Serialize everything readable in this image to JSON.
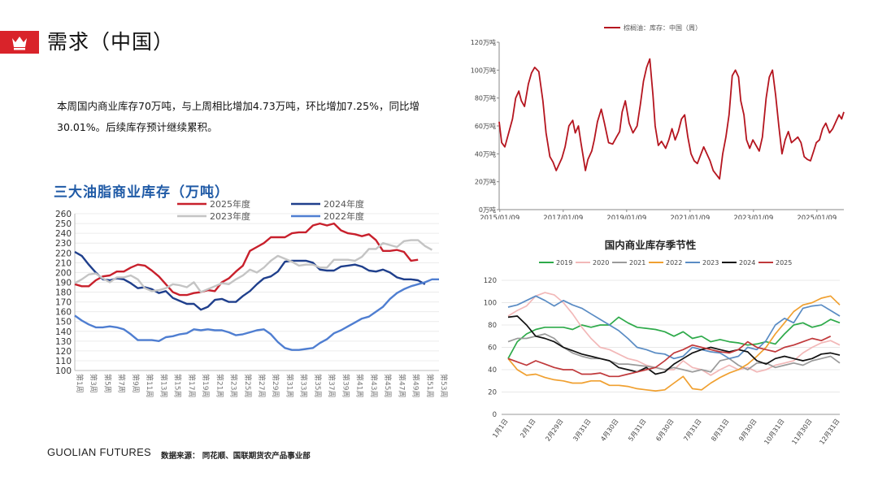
{
  "header": {
    "title": "需求（中国）",
    "icon": "crown-icon",
    "accent": "#d9232a"
  },
  "summary": {
    "line1": "本周国内商业库存70万吨，与上周相比增加4.73万吨，环比增加7.25%，同比增",
    "line2": "30.01%。后续库存预计继续累积。"
  },
  "footer": {
    "logo": "GUOLIAN FUTURES",
    "source": "数据来源： 同花顺、国联期货农产品事业部"
  },
  "chart_data": [
    {
      "type": "line",
      "title": "三大油脂商业库存（万吨）",
      "ylim": [
        100,
        260
      ],
      "y_ticks": [
        "100",
        "110",
        "120",
        "130",
        "140",
        "150",
        "160",
        "170",
        "180",
        "190",
        "200",
        "210",
        "220",
        "230",
        "240",
        "250",
        "260"
      ],
      "x_ticks": [
        "第1周",
        "第3周",
        "第5周",
        "第7周",
        "第9周",
        "第11周",
        "第13周",
        "第15周",
        "第17周",
        "第19周",
        "第21周",
        "第23周",
        "第25周",
        "第27周",
        "第29周",
        "第31周",
        "第33周",
        "第35周",
        "第37周",
        "第39周",
        "第41周",
        "第43周",
        "第45周",
        "第47周",
        "第49周",
        "第51周",
        "第53周"
      ],
      "series": [
        {
          "name": "2025年度",
          "color": "#c8202c",
          "values": [
            188,
            186,
            186,
            192,
            196,
            197,
            201,
            201,
            205,
            208,
            207,
            202,
            196,
            188,
            180,
            177,
            177,
            179,
            180,
            182,
            181,
            190,
            194,
            201,
            207,
            222,
            226,
            230,
            236,
            236,
            236,
            240,
            241,
            241,
            248,
            250,
            248,
            250,
            243,
            240,
            239,
            237,
            239,
            233,
            222,
            222,
            223,
            221,
            212,
            213
          ]
        },
        {
          "name": "2024年度",
          "color": "#1f3f8c",
          "values": [
            221,
            217,
            208,
            200,
            193,
            192,
            194,
            193,
            189,
            184,
            185,
            183,
            179,
            181,
            174,
            171,
            168,
            168,
            162,
            165,
            172,
            173,
            170,
            170,
            176,
            181,
            188,
            194,
            196,
            201,
            211,
            212,
            212,
            212,
            210,
            203,
            202,
            202,
            206,
            207,
            208,
            206,
            202,
            201,
            203,
            200,
            195,
            193,
            193,
            192,
            188
          ]
        },
        {
          "name": "2023年度",
          "color": "#c4c4c4",
          "values": [
            189,
            193,
            198,
            199,
            194,
            190,
            195,
            195,
            197,
            193,
            184,
            181,
            182,
            184,
            188,
            187,
            185,
            190,
            180,
            183,
            186,
            189,
            188,
            193,
            197,
            203,
            200,
            205,
            212,
            217,
            214,
            211,
            207,
            208,
            208,
            205,
            205,
            213,
            213,
            213,
            212,
            216,
            224,
            224,
            230,
            228,
            226,
            232,
            233,
            233,
            227,
            223
          ]
        },
        {
          "name": "2022年度",
          "color": "#4f7ed1",
          "values": [
            156,
            151,
            147,
            144,
            144,
            145,
            144,
            142,
            137,
            131,
            131,
            131,
            130,
            134,
            135,
            137,
            138,
            142,
            141,
            142,
            141,
            141,
            139,
            136,
            137,
            139,
            141,
            142,
            137,
            129,
            123,
            121,
            121,
            122,
            123,
            128,
            132,
            138,
            141,
            145,
            149,
            153,
            155,
            160,
            165,
            173,
            179,
            183,
            186,
            188,
            190,
            193,
            193
          ]
        }
      ]
    },
    {
      "type": "line",
      "title": "棕榈油：库存：中国（周）",
      "legend": "棕榈油：库存：中国（周）",
      "ylim": [
        0,
        120
      ],
      "y_ticks": [
        "0万吨",
        "20万吨",
        "40万吨",
        "60万吨",
        "80万吨",
        "100万吨",
        "120万吨"
      ],
      "x_ticks": [
        "2015/01/09",
        "2017/01/09",
        "2019/01/09",
        "2021/01/09",
        "2023/01/09",
        "2025/01/09"
      ],
      "x_range": [
        2015.0,
        2025.87
      ],
      "series": [
        {
          "name": "棕榈油：库存：中国（周）",
          "color": "#b5151f",
          "x": [
            2015.0,
            2015.08,
            2015.18,
            2015.3,
            2015.42,
            2015.52,
            2015.62,
            2015.7,
            2015.8,
            2015.92,
            2016.02,
            2016.12,
            2016.25,
            2016.38,
            2016.48,
            2016.6,
            2016.7,
            2016.8,
            2016.88,
            2016.98,
            2017.08,
            2017.2,
            2017.32,
            2017.4,
            2017.5,
            2017.58,
            2017.65,
            2017.72,
            2017.8,
            2017.92,
            2018.0,
            2018.1,
            2018.22,
            2018.32,
            2018.45,
            2018.58,
            2018.7,
            2018.8,
            2018.88,
            2018.98,
            2019.1,
            2019.22,
            2019.35,
            2019.45,
            2019.55,
            2019.65,
            2019.75,
            2019.85,
            2019.92,
            2020.02,
            2020.12,
            2020.25,
            2020.35,
            2020.45,
            2020.55,
            2020.65,
            2020.75,
            2020.85,
            2020.95,
            2021.05,
            2021.15,
            2021.25,
            2021.35,
            2021.45,
            2021.55,
            2021.65,
            2021.75,
            2021.85,
            2021.95,
            2022.05,
            2022.15,
            2022.25,
            2022.35,
            2022.45,
            2022.55,
            2022.62,
            2022.72,
            2022.8,
            2022.9,
            2023.0,
            2023.1,
            2023.2,
            2023.3,
            2023.42,
            2023.52,
            2023.62,
            2023.72,
            2023.82,
            2023.92,
            2024.02,
            2024.12,
            2024.22,
            2024.32,
            2024.42,
            2024.52,
            2024.62,
            2024.72,
            2024.82,
            2024.92,
            2025.0,
            2025.1,
            2025.2,
            2025.3,
            2025.42,
            2025.52,
            2025.62,
            2025.72,
            2025.8,
            2025.87
          ],
          "values": [
            63,
            48,
            45,
            55,
            65,
            80,
            85,
            78,
            74,
            90,
            98,
            102,
            99,
            78,
            55,
            38,
            34,
            28,
            32,
            37,
            45,
            60,
            64,
            55,
            60,
            48,
            38,
            28,
            36,
            42,
            50,
            63,
            72,
            62,
            48,
            47,
            52,
            56,
            70,
            78,
            62,
            55,
            60,
            75,
            92,
            102,
            108,
            82,
            60,
            46,
            49,
            44,
            50,
            58,
            50,
            56,
            65,
            68,
            52,
            40,
            35,
            33,
            39,
            45,
            40,
            35,
            28,
            25,
            22,
            40,
            52,
            68,
            96,
            100,
            95,
            78,
            68,
            50,
            44,
            50,
            46,
            42,
            52,
            80,
            95,
            100,
            82,
            60,
            40,
            50,
            56,
            48,
            50,
            52,
            48,
            38,
            36,
            35,
            42,
            48,
            50,
            58,
            62,
            55,
            58,
            63,
            68,
            65,
            70
          ]
        }
      ]
    },
    {
      "type": "line",
      "title": "国内商业库存季节性",
      "ylim": [
        0,
        120
      ],
      "y_ticks": [
        "0",
        "20",
        "40",
        "60",
        "80",
        "100",
        "120"
      ],
      "x_ticks": [
        "1月1日",
        "2月1日",
        "2月29日",
        "3月31日",
        "4月30日",
        "5月31日",
        "6月30日",
        "7月31日",
        "8月31日",
        "9月30日",
        "10月31日",
        "11月30日",
        "12月31日"
      ],
      "series": [
        {
          "name": "2019",
          "color": "#2eaa4a",
          "values": [
            50,
            65,
            72,
            76,
            78,
            78,
            78,
            76,
            80,
            78,
            80,
            80,
            87,
            82,
            78,
            77,
            76,
            74,
            70,
            74,
            68,
            70,
            65,
            67,
            65,
            64,
            62,
            63,
            65,
            63,
            72,
            80,
            82,
            78,
            80,
            85,
            82
          ]
        },
        {
          "name": "2020",
          "color": "#f2b8b8",
          "values": [
            88,
            93,
            97,
            106,
            109,
            107,
            100,
            90,
            78,
            68,
            60,
            58,
            54,
            50,
            48,
            44,
            42,
            40,
            40,
            48,
            42,
            40,
            35,
            40,
            44,
            40,
            42,
            38,
            40,
            44,
            46,
            48,
            55,
            60,
            64,
            66,
            62
          ]
        },
        {
          "name": "2021",
          "color": "#9a9a9a",
          "values": [
            65,
            68,
            68,
            70,
            72,
            68,
            60,
            55,
            52,
            50,
            50,
            48,
            45,
            45,
            44,
            43,
            42,
            40,
            42,
            40,
            38,
            40,
            38,
            48,
            50,
            44,
            40,
            46,
            46,
            42,
            44,
            46,
            44,
            48,
            50,
            52,
            46
          ]
        },
        {
          "name": "2022",
          "color": "#f0a030",
          "values": [
            50,
            40,
            35,
            36,
            33,
            31,
            30,
            28,
            28,
            30,
            30,
            26,
            26,
            25,
            23,
            22,
            21,
            22,
            28,
            34,
            23,
            22,
            28,
            33,
            37,
            40,
            45,
            52,
            60,
            72,
            82,
            92,
            98,
            100,
            104,
            106,
            98
          ]
        },
        {
          "name": "2023",
          "color": "#5a8cc4",
          "values": [
            96,
            98,
            102,
            106,
            102,
            97,
            102,
            98,
            95,
            90,
            85,
            80,
            75,
            68,
            60,
            58,
            55,
            54,
            50,
            52,
            60,
            58,
            56,
            55,
            50,
            52,
            60,
            58,
            66,
            80,
            86,
            82,
            95,
            97,
            98,
            93,
            88
          ]
        },
        {
          "name": "2024",
          "color": "#111111",
          "values": [
            87,
            88,
            80,
            70,
            68,
            65,
            60,
            57,
            54,
            52,
            50,
            48,
            42,
            40,
            38,
            42,
            36,
            38,
            45,
            50,
            55,
            58,
            60,
            58,
            56,
            58,
            56,
            48,
            45,
            50,
            52,
            50,
            48,
            50,
            54,
            55,
            53
          ]
        },
        {
          "name": "2025",
          "color": "#c0393b",
          "values": [
            50,
            47,
            44,
            48,
            45,
            42,
            40,
            40,
            36,
            36,
            37,
            34,
            34,
            36,
            38,
            40,
            42,
            48,
            55,
            58,
            62,
            60,
            58,
            56,
            55,
            58,
            65,
            60,
            58,
            56,
            60,
            62,
            65,
            68,
            66,
            70
          ]
        }
      ]
    }
  ]
}
